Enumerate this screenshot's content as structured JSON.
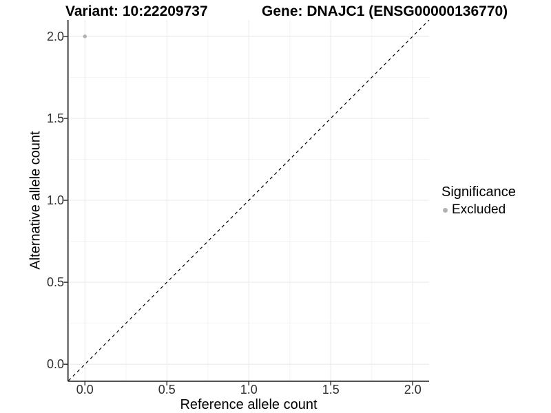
{
  "chart_data": {
    "type": "scatter",
    "titles": {
      "variant": "Variant: 10:22209737",
      "gene": "Gene: DNAJC1 (ENSG00000136770)"
    },
    "xlabel": "Reference allele count",
    "ylabel": "Alternative allele count",
    "xlim": [
      -0.1,
      2.1
    ],
    "ylim": [
      -0.1,
      2.1
    ],
    "x_ticks": [
      {
        "value": 0,
        "label": "0.0"
      },
      {
        "value": 0.5,
        "label": "0.5"
      },
      {
        "value": 1,
        "label": "1.0"
      },
      {
        "value": 1.5,
        "label": "1.5"
      },
      {
        "value": 2,
        "label": "2.0"
      }
    ],
    "y_ticks": [
      {
        "value": 0,
        "label": "0.0"
      },
      {
        "value": 0.5,
        "label": "0.5"
      },
      {
        "value": 1,
        "label": "1.0"
      },
      {
        "value": 1.5,
        "label": "1.5"
      },
      {
        "value": 2,
        "label": "2.0"
      }
    ],
    "minor_ticks": [
      0.25,
      0.75,
      1.25,
      1.75
    ],
    "points": [
      {
        "x": 0,
        "y": 2,
        "series": "Excluded"
      }
    ],
    "reference_line": {
      "slope": 1,
      "intercept": 0,
      "style": "dashed"
    },
    "legend": {
      "title": "Significance",
      "position": "right",
      "items": [
        {
          "label": "Excluded",
          "color": "#b3b3b3"
        }
      ]
    },
    "grid": "major+minor",
    "colors": {
      "point": "#b3b3b3",
      "grid_major": "#e8e8e8",
      "grid_minor": "#f4f4f4",
      "axis_line": "#333333",
      "reference_line": "#000000"
    }
  }
}
